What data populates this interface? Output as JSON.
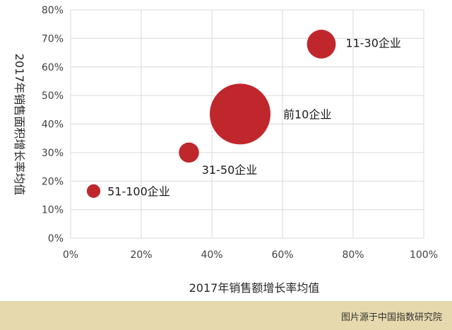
{
  "chart_data": {
    "type": "scatter",
    "xlabel": "2017年销售额增长率均值",
    "ylabel": "2017年销售面积增长率均值",
    "xlim": [
      0,
      100
    ],
    "ylim": [
      0,
      80
    ],
    "x_ticks": [
      "0%",
      "20%",
      "40%",
      "60%",
      "80%",
      "100%"
    ],
    "y_ticks": [
      "0%",
      "10%",
      "20%",
      "30%",
      "40%",
      "50%",
      "60%",
      "70%",
      "80%"
    ],
    "grid": true,
    "bubble_color": "#c0272d",
    "points": [
      {
        "label": "51-100企业",
        "x": 6.5,
        "y": 16.5,
        "size": 1
      },
      {
        "label": "31-50企业",
        "x": 33.5,
        "y": 30,
        "size": 2.2
      },
      {
        "label": "前10企业",
        "x": 48,
        "y": 43.5,
        "size": 20
      },
      {
        "label": "11-30企业",
        "x": 71,
        "y": 68,
        "size": 4.5
      }
    ]
  },
  "footer": {
    "credit": "图片源于中国指数研究院"
  }
}
